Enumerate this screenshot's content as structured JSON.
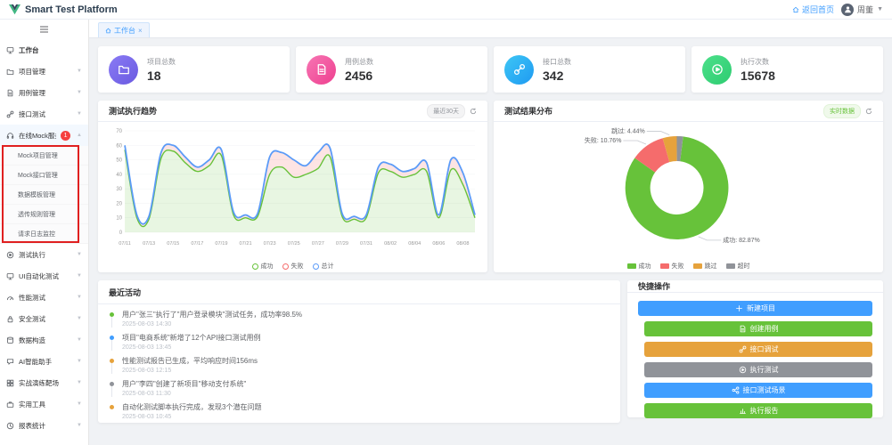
{
  "app": {
    "title": "Smart Test Platform"
  },
  "header": {
    "back_home": "返回首页",
    "username": "周董"
  },
  "tabs": [
    {
      "label": "工作台"
    }
  ],
  "sidebar": {
    "items": [
      {
        "label": "工作台",
        "icon": "monitor-icon",
        "active": true
      },
      {
        "label": "项目管理",
        "icon": "folder-icon",
        "arrow": "down"
      },
      {
        "label": "用例管理",
        "icon": "file-icon",
        "arrow": "down"
      },
      {
        "label": "接口测试",
        "icon": "link-icon",
        "arrow": "down"
      },
      {
        "label": "在线Mock服务",
        "icon": "headset-icon",
        "arrow": "up",
        "badge": "1",
        "expanded": true,
        "children": [
          "Mock项目管理",
          "Mock接口管理",
          "数据模板管理",
          "透传规则管理",
          "请求日志监控"
        ]
      },
      {
        "label": "测试执行",
        "icon": "play-icon",
        "arrow": "down"
      },
      {
        "label": "UI自动化测试",
        "icon": "monitor-icon",
        "arrow": "down"
      },
      {
        "label": "性能测试",
        "icon": "gauge-icon",
        "arrow": "down"
      },
      {
        "label": "安全测试",
        "icon": "lock-icon",
        "arrow": "down"
      },
      {
        "label": "数据构造",
        "icon": "database-icon",
        "arrow": "down"
      },
      {
        "label": "AI智能助手",
        "icon": "chat-icon",
        "arrow": "down"
      },
      {
        "label": "实战演练靶场",
        "icon": "grid-icon",
        "arrow": "down"
      },
      {
        "label": "实用工具",
        "icon": "toolbox-icon",
        "arrow": "down"
      },
      {
        "label": "报表统计",
        "icon": "clock-icon",
        "arrow": "down"
      }
    ],
    "annotation_badge": "1"
  },
  "stats": [
    {
      "label": "项目总数",
      "value": "18",
      "icon": "folder-icon",
      "colors": [
        "#8a7bf5",
        "#6a5ae0"
      ]
    },
    {
      "label": "用例总数",
      "value": "2456",
      "icon": "file-icon",
      "colors": [
        "#f776b4",
        "#ee3f8f"
      ]
    },
    {
      "label": "接口总数",
      "value": "342",
      "icon": "link-icon",
      "colors": [
        "#3ec6f5",
        "#1e9af2"
      ]
    },
    {
      "label": "执行次数",
      "value": "15678",
      "icon": "play-icon",
      "colors": [
        "#4ce08a",
        "#2ecc71"
      ]
    }
  ],
  "trend_card": {
    "title": "测试执行趋势",
    "range_label": "最近30天"
  },
  "distribution_card": {
    "title": "测试结果分布",
    "tag_label": "实时数据"
  },
  "activity": {
    "title": "最近活动",
    "items": [
      {
        "dot_color": "#67C23A",
        "text": "用户\"张三\"执行了\"用户登录模块\"测试任务，成功率98.5%",
        "time": "2025-08-03 14:30"
      },
      {
        "dot_color": "#409EFF",
        "text": "项目\"电商系统\"新增了12个API接口测试用例",
        "time": "2025-08-03 13:45"
      },
      {
        "dot_color": "#E6A23C",
        "text": "性能测试报告已生成，平均响应时间156ms",
        "time": "2025-08-03 12:15"
      },
      {
        "dot_color": "#909399",
        "text": "用户\"李四\"创建了新项目\"移动支付系统\"",
        "time": "2025-08-03 11:30"
      },
      {
        "dot_color": "#E6A23C",
        "text": "自动化测试脚本执行完成，发现3个潜在问题",
        "time": "2025-08-03 10:45"
      }
    ]
  },
  "quick": {
    "title": "快捷操作",
    "buttons": [
      {
        "label": "新建项目",
        "color": "#409EFF",
        "icon": "plus-icon",
        "inset": false
      },
      {
        "label": "创建用例",
        "color": "#67C23A",
        "icon": "file-icon",
        "inset": true
      },
      {
        "label": "接口调试",
        "color": "#E6A23C",
        "icon": "link-icon",
        "inset": true
      },
      {
        "label": "执行测试",
        "color": "#909399",
        "icon": "play-icon",
        "inset": true
      },
      {
        "label": "接口测试场景",
        "color": "#409EFF",
        "icon": "share-icon",
        "inset": true
      },
      {
        "label": "执行报告",
        "color": "#67C23A",
        "icon": "report-icon",
        "inset": true
      }
    ]
  },
  "chart_data": [
    {
      "type": "area",
      "title": "测试执行趋势",
      "x_tick_labels": [
        "07/11",
        "07/13",
        "07/15",
        "07/17",
        "07/19",
        "07/21",
        "07/23",
        "07/25",
        "07/27",
        "07/29",
        "07/31",
        "08/02",
        "08/04",
        "08/06",
        "08/08"
      ],
      "y_ticks": [
        0,
        10,
        20,
        30,
        40,
        50,
        60,
        70
      ],
      "ylim": [
        0,
        70
      ],
      "legend_position": "bottom",
      "series": [
        {
          "name": "成功",
          "color": "#67C23A",
          "values": [
            57,
            10,
            9,
            51,
            56,
            48,
            42,
            46,
            53,
            12,
            10,
            11,
            40,
            45,
            38,
            40,
            44,
            52,
            11,
            9,
            10,
            41,
            42,
            38,
            40,
            42,
            10,
            43,
            33,
            10
          ]
        },
        {
          "name": "失败",
          "color": "#F56C6C",
          "values": [
            3,
            2,
            2,
            4,
            4,
            4,
            3,
            4,
            4,
            2,
            2,
            2,
            12,
            10,
            12,
            6,
            11,
            6,
            2,
            2,
            2,
            4,
            5,
            4,
            4,
            6,
            2,
            7,
            8,
            2
          ]
        },
        {
          "name": "总计",
          "color": "#5B9BF8",
          "values": [
            60,
            12,
            11,
            55,
            60,
            52,
            45,
            50,
            57,
            14,
            12,
            13,
            52,
            55,
            50,
            46,
            55,
            58,
            13,
            11,
            12,
            45,
            47,
            42,
            44,
            48,
            12,
            50,
            41,
            12
          ]
        }
      ]
    },
    {
      "type": "pie",
      "title": "测试结果分布",
      "donut": true,
      "slices": [
        {
          "label": "成功",
          "value": 82.87,
          "color": "#67C23A",
          "callout": "成功: 82.87%"
        },
        {
          "label": "失败",
          "value": 10.76,
          "color": "#F56C6C",
          "callout": "失败: 10.76%"
        },
        {
          "label": "跳过",
          "value": 4.44,
          "color": "#E6A23C",
          "callout": "跳过: 4.44%"
        },
        {
          "label": "超时",
          "value": 1.93,
          "color": "#909399",
          "callout": ""
        }
      ],
      "legend_position": "bottom"
    }
  ]
}
